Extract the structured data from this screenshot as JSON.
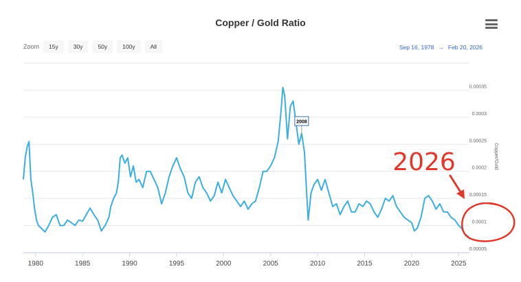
{
  "header": {
    "title": "Copper / Gold Ratio"
  },
  "zoom": {
    "label": "Zoom",
    "buttons": [
      "15y",
      "30y",
      "50y",
      "100y",
      "All"
    ]
  },
  "date_range": {
    "from": "Sep 16, 1978",
    "separator": "→",
    "to": "Feb 20, 2026"
  },
  "annotations": {
    "flag": "2008",
    "marker_text": "2026",
    "marker_color": "#e0392b"
  },
  "colors": {
    "line": "#3aaee0"
  },
  "chart_data": {
    "type": "line",
    "title": "Copper / Gold Ratio",
    "xlabel": "",
    "ylabel": "Copper/Gold",
    "xlim": [
      1978.7,
      2026.15
    ],
    "ylim": [
      5e-05,
      0.0004
    ],
    "x_ticks": [
      1980,
      1985,
      1990,
      1995,
      2000,
      2005,
      2010,
      2015,
      2020,
      2025
    ],
    "x_tick_labels": [
      "1980",
      "1985",
      "1990",
      "1995",
      "2000",
      "2005",
      "2010",
      "2015",
      "2020",
      "2025"
    ],
    "y_ticks": [
      5e-05,
      0.0001,
      0.00015,
      0.0002,
      0.00025,
      0.0003,
      0.00035
    ],
    "y_tick_labels": [
      "0.00005",
      "0.0001",
      "0.00015",
      "0.0002",
      "0.00025",
      "0.0003",
      "0.00035"
    ],
    "series": [
      {
        "name": "Copper/Gold",
        "x": [
          1978.7,
          1978.9,
          1979.1,
          1979.3,
          1979.5,
          1979.7,
          1979.9,
          1980.1,
          1980.3,
          1980.6,
          1981.0,
          1981.4,
          1981.8,
          1982.2,
          1982.6,
          1983.0,
          1983.4,
          1983.8,
          1984.2,
          1984.6,
          1985.0,
          1985.4,
          1985.8,
          1986.2,
          1986.6,
          1987.0,
          1987.4,
          1987.8,
          1988.0,
          1988.3,
          1988.6,
          1988.8,
          1989.0,
          1989.2,
          1989.5,
          1989.8,
          1990.1,
          1990.4,
          1990.7,
          1991.0,
          1991.4,
          1991.8,
          1992.2,
          1992.6,
          1993.0,
          1993.4,
          1993.8,
          1994.2,
          1994.6,
          1995.0,
          1995.4,
          1995.8,
          1996.2,
          1996.6,
          1997.0,
          1997.4,
          1997.8,
          1998.2,
          1998.6,
          1999.0,
          1999.4,
          1999.8,
          2000.2,
          2000.6,
          2001.0,
          2001.4,
          2001.8,
          2002.2,
          2002.6,
          2003.0,
          2003.4,
          2003.8,
          2004.2,
          2004.6,
          2005.0,
          2005.4,
          2005.8,
          2006.1,
          2006.3,
          2006.5,
          2006.8,
          2007.1,
          2007.4,
          2007.7,
          2008.0,
          2008.3,
          2008.6,
          2008.8,
          2009.0,
          2009.3,
          2009.6,
          2010.0,
          2010.4,
          2010.8,
          2011.2,
          2011.6,
          2012.0,
          2012.4,
          2012.8,
          2013.2,
          2013.6,
          2014.0,
          2014.4,
          2014.8,
          2015.2,
          2015.6,
          2016.0,
          2016.4,
          2016.8,
          2017.2,
          2017.6,
          2018.0,
          2018.4,
          2018.8,
          2019.2,
          2019.6,
          2020.0,
          2020.3,
          2020.6,
          2021.0,
          2021.4,
          2021.8,
          2022.2,
          2022.6,
          2023.0,
          2023.4,
          2023.8,
          2024.2,
          2024.6,
          2025.0,
          2025.3,
          2025.6,
          2026.0,
          2026.15
        ],
        "values": [
          0.000185,
          0.000225,
          0.000245,
          0.000255,
          0.000185,
          0.00016,
          0.00013,
          0.00011,
          0.0001,
          9.5e-05,
          8.8e-05,
          0.0001,
          0.000115,
          0.00012,
          0.0001,
          0.0001,
          0.00011,
          0.000105,
          0.0001,
          0.00011,
          0.000108,
          0.00012,
          0.000132,
          0.00012,
          0.00011,
          9e-05,
          0.0001,
          0.000115,
          0.000135,
          0.00015,
          0.00016,
          0.00018,
          0.000225,
          0.00023,
          0.000215,
          0.000225,
          0.00019,
          0.00021,
          0.00018,
          0.000185,
          0.00017,
          0.0002,
          0.0002,
          0.000185,
          0.00017,
          0.00014,
          0.00016,
          0.00019,
          0.00021,
          0.000225,
          0.000205,
          0.00019,
          0.00016,
          0.00015,
          0.00018,
          0.00019,
          0.00017,
          0.00016,
          0.000145,
          0.000155,
          0.00018,
          0.00016,
          0.000185,
          0.00017,
          0.000155,
          0.000145,
          0.000135,
          0.000145,
          0.00013,
          0.00014,
          0.000145,
          0.00017,
          0.0002,
          0.0002,
          0.00021,
          0.000225,
          0.000255,
          0.00031,
          0.000355,
          0.00034,
          0.00026,
          0.00032,
          0.00033,
          0.00029,
          0.00025,
          0.00027,
          0.000235,
          0.00017,
          0.00011,
          0.00016,
          0.000175,
          0.000185,
          0.000165,
          0.000185,
          0.00016,
          0.000135,
          0.00014,
          0.00012,
          0.000135,
          0.000145,
          0.000125,
          0.000125,
          0.00014,
          0.000135,
          0.000145,
          0.00014,
          0.000125,
          0.000115,
          0.00013,
          0.00015,
          0.000145,
          0.000155,
          0.000135,
          0.000125,
          0.000115,
          0.00011,
          0.000105,
          9e-05,
          9.5e-05,
          0.000115,
          0.00015,
          0.000155,
          0.000145,
          0.00013,
          0.00014,
          0.000125,
          0.000125,
          0.000115,
          0.00011,
          0.0001,
          9.5e-05,
          8.5e-05,
          8e-05,
          7.5e-05
        ]
      }
    ]
  }
}
